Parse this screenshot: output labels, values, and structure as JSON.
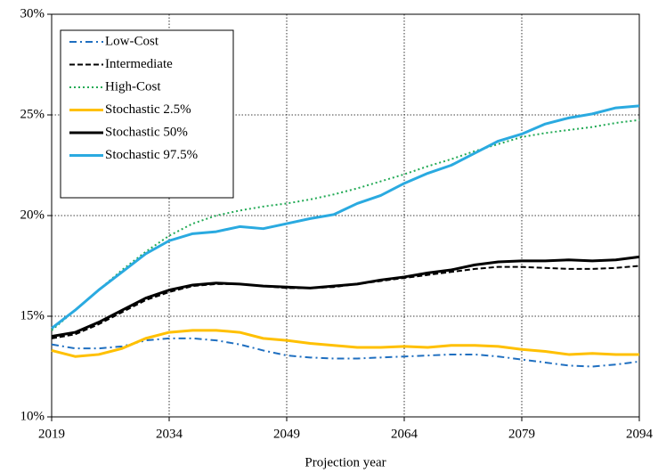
{
  "chart_data": {
    "type": "line",
    "xlabel": "Projection year",
    "x": [
      2019,
      2022,
      2025,
      2028,
      2031,
      2034,
      2037,
      2040,
      2043,
      2046,
      2049,
      2052,
      2055,
      2058,
      2061,
      2064,
      2067,
      2070,
      2073,
      2076,
      2079,
      2082,
      2085,
      2088,
      2091,
      2094
    ],
    "series": [
      {
        "name": "Low-Cost",
        "color": "#1f6fc0",
        "style": "dash-dot",
        "values": [
          13.6,
          13.4,
          13.4,
          13.5,
          13.8,
          13.9,
          13.9,
          13.8,
          13.6,
          13.3,
          13.05,
          12.95,
          12.9,
          12.9,
          12.95,
          13.0,
          13.05,
          13.1,
          13.1,
          13.0,
          12.85,
          12.7,
          12.55,
          12.5,
          12.6,
          12.75
        ]
      },
      {
        "name": "Intermediate",
        "color": "#000000",
        "style": "dashed",
        "values": [
          13.9,
          14.1,
          14.6,
          15.2,
          15.8,
          16.2,
          16.5,
          16.6,
          16.6,
          16.5,
          16.4,
          16.4,
          16.45,
          16.6,
          16.75,
          16.9,
          17.05,
          17.2,
          17.35,
          17.45,
          17.45,
          17.4,
          17.35,
          17.35,
          17.4,
          17.5
        ]
      },
      {
        "name": "High-Cost",
        "color": "#22aa55",
        "style": "dotted",
        "values": [
          14.3,
          15.3,
          16.3,
          17.3,
          18.2,
          19.0,
          19.6,
          20.0,
          20.25,
          20.45,
          20.6,
          20.8,
          21.05,
          21.35,
          21.7,
          22.05,
          22.45,
          22.8,
          23.2,
          23.55,
          23.9,
          24.1,
          24.25,
          24.4,
          24.6,
          24.75
        ]
      },
      {
        "name": "Stochastic 2.5%",
        "color": "#ffc000",
        "style": "solid",
        "values": [
          13.3,
          13.0,
          13.1,
          13.4,
          13.9,
          14.2,
          14.3,
          14.3,
          14.2,
          13.9,
          13.8,
          13.65,
          13.55,
          13.45,
          13.45,
          13.5,
          13.45,
          13.55,
          13.55,
          13.5,
          13.35,
          13.25,
          13.1,
          13.15,
          13.1,
          13.1
        ]
      },
      {
        "name": "Stochastic 50%",
        "color": "#000000",
        "style": "solid",
        "values": [
          14.0,
          14.2,
          14.7,
          15.3,
          15.9,
          16.3,
          16.55,
          16.65,
          16.6,
          16.5,
          16.45,
          16.4,
          16.5,
          16.6,
          16.8,
          16.95,
          17.15,
          17.3,
          17.55,
          17.7,
          17.75,
          17.75,
          17.8,
          17.75,
          17.8,
          17.95
        ]
      },
      {
        "name": "Stochastic 97.5%",
        "color": "#2aaae0",
        "style": "solid",
        "values": [
          14.4,
          15.3,
          16.3,
          17.2,
          18.1,
          18.75,
          19.1,
          19.2,
          19.45,
          19.35,
          19.6,
          19.85,
          20.05,
          20.6,
          21.0,
          21.6,
          22.1,
          22.5,
          23.1,
          23.7,
          24.05,
          24.55,
          24.85,
          25.05,
          25.35,
          25.45
        ]
      }
    ],
    "xlim": [
      2019,
      2094
    ],
    "xticks": [
      2019,
      2034,
      2049,
      2064,
      2079,
      2094
    ],
    "ylim": [
      10,
      30
    ],
    "yticks": [
      {
        "value": 10,
        "label": "10%"
      },
      {
        "value": 15,
        "label": "15%"
      },
      {
        "value": 20,
        "label": "20%"
      },
      {
        "value": 25,
        "label": "25%"
      },
      {
        "value": 30,
        "label": "30%"
      }
    ],
    "grid": true,
    "legend": "upper left"
  }
}
